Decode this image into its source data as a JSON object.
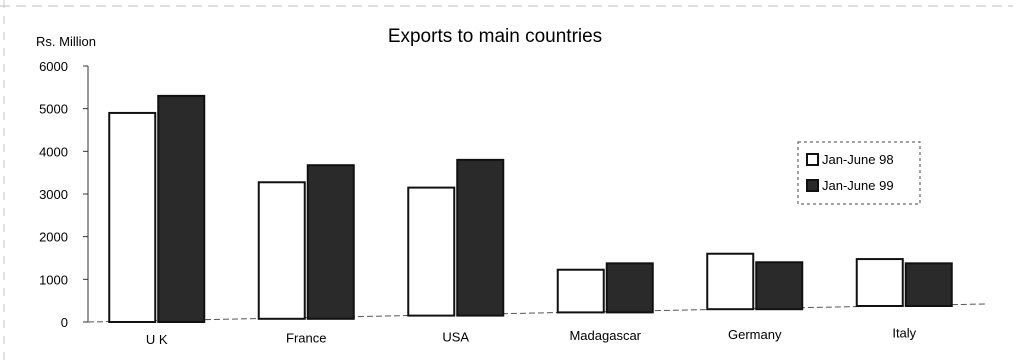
{
  "chart_data": {
    "type": "bar",
    "title": "Exports to main countries",
    "unit_label": "Rs. Million",
    "xlabel": "",
    "ylabel": "Rs. Million",
    "ylim": [
      0,
      6000
    ],
    "yticks": [
      0,
      1000,
      2000,
      3000,
      4000,
      5000,
      6000
    ],
    "categories": [
      "U K",
      "France",
      "USA",
      "Madagascar",
      "Germany",
      "Italy"
    ],
    "series": [
      {
        "name": "Jan-June 98",
        "values": [
          4900,
          3200,
          3000,
          1000,
          1300,
          1100
        ],
        "color": "#ffffff"
      },
      {
        "name": "Jan-June 99",
        "values": [
          5300,
          3600,
          3650,
          1150,
          1100,
          1000
        ],
        "color": "#2a2a2a"
      }
    ],
    "legend_position": "right",
    "grid": false
  }
}
